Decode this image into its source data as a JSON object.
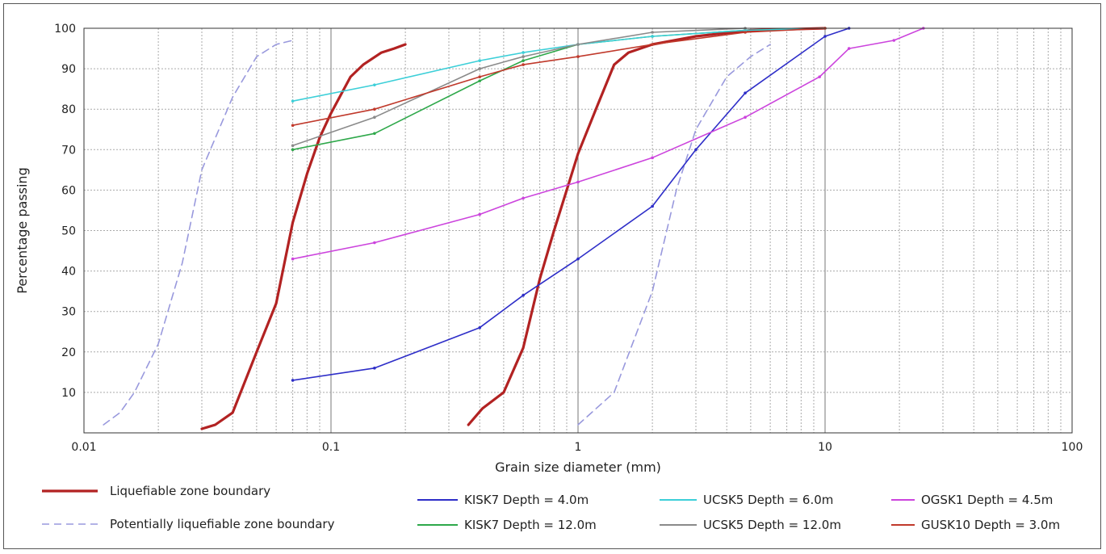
{
  "chart_data": {
    "type": "line",
    "xscale": "log",
    "xlim": [
      0.01,
      100
    ],
    "ylim": [
      0,
      100
    ],
    "xlabel": "Grain size diameter (mm)",
    "ylabel": "Percentage passing",
    "xticks": [
      "0.01",
      "0.1",
      "1",
      "10",
      "100"
    ],
    "yticks": [
      "10",
      "20",
      "30",
      "40",
      "50",
      "60",
      "70",
      "80",
      "90",
      "100"
    ],
    "grid": true,
    "legend_position": "bottom",
    "boundaries": [
      {
        "name": "Liquefiable zone boundary",
        "style": "solid-thick",
        "color": "#b22222",
        "segments": [
          [
            [
              0.03,
              1
            ],
            [
              0.034,
              2
            ],
            [
              0.04,
              5
            ],
            [
              0.05,
              20
            ],
            [
              0.06,
              32
            ],
            [
              0.07,
              52
            ],
            [
              0.08,
              64
            ],
            [
              0.09,
              73
            ],
            [
              0.1,
              79
            ],
            [
              0.12,
              88
            ],
            [
              0.135,
              91
            ],
            [
              0.16,
              94
            ],
            [
              0.18,
              95
            ],
            [
              0.2,
              96
            ]
          ],
          [
            [
              0.36,
              2
            ],
            [
              0.41,
              6
            ],
            [
              0.5,
              10
            ],
            [
              0.6,
              21
            ],
            [
              0.7,
              38
            ],
            [
              0.8,
              50
            ],
            [
              0.9,
              60
            ],
            [
              1.0,
              69
            ],
            [
              1.2,
              81
            ],
            [
              1.4,
              91
            ],
            [
              1.6,
              94
            ],
            [
              2.0,
              96
            ],
            [
              3.0,
              98
            ],
            [
              5.0,
              99.5
            ],
            [
              10.0,
              100
            ]
          ]
        ]
      },
      {
        "name": "Potentially liquefiable zone boundary",
        "style": "dashed",
        "color": "#9999dd",
        "segments": [
          [
            [
              0.012,
              2
            ],
            [
              0.014,
              5
            ],
            [
              0.016,
              10
            ],
            [
              0.02,
              22
            ],
            [
              0.025,
              42
            ],
            [
              0.03,
              65
            ],
            [
              0.04,
              83
            ],
            [
              0.05,
              93
            ],
            [
              0.06,
              96
            ],
            [
              0.07,
              97
            ]
          ],
          [
            [
              1.0,
              2
            ],
            [
              1.4,
              10
            ],
            [
              2.0,
              35
            ],
            [
              2.5,
              60
            ],
            [
              3.0,
              75
            ],
            [
              4.0,
              88
            ],
            [
              5.0,
              93
            ],
            [
              6.0,
              96
            ]
          ]
        ]
      }
    ],
    "series": [
      {
        "name": "KISK7 Depth = 4.0m",
        "color": "#2e2ec8",
        "points": [
          [
            0.07,
            13
          ],
          [
            0.15,
            16
          ],
          [
            0.4,
            26
          ],
          [
            0.6,
            34
          ],
          [
            1.0,
            43
          ],
          [
            2.0,
            56
          ],
          [
            3.0,
            70
          ],
          [
            4.75,
            84
          ],
          [
            10.0,
            98
          ],
          [
            12.5,
            100
          ]
        ]
      },
      {
        "name": "KISK7 Depth = 12.0m",
        "color": "#2ea84a",
        "points": [
          [
            0.07,
            70
          ],
          [
            0.15,
            74
          ],
          [
            0.4,
            87
          ],
          [
            0.6,
            92
          ],
          [
            1.0,
            96
          ],
          [
            2.0,
            98
          ],
          [
            4.75,
            99.5
          ],
          [
            10.0,
            100
          ]
        ]
      },
      {
        "name": "UCSK5 Depth = 6.0m",
        "color": "#3ccfd8",
        "points": [
          [
            0.07,
            82
          ],
          [
            0.15,
            86
          ],
          [
            0.4,
            92
          ],
          [
            0.6,
            94
          ],
          [
            1.0,
            96
          ],
          [
            2.0,
            98
          ],
          [
            4.75,
            99.5
          ],
          [
            10.0,
            100
          ]
        ]
      },
      {
        "name": "UCSK5 Depth = 12.0m",
        "color": "#8a8a8a",
        "points": [
          [
            0.07,
            71
          ],
          [
            0.15,
            78
          ],
          [
            0.4,
            90
          ],
          [
            0.6,
            93
          ],
          [
            1.0,
            96
          ],
          [
            2.0,
            99
          ],
          [
            4.75,
            100
          ]
        ]
      },
      {
        "name": "OGSK1 Depth = 4.5m",
        "color": "#cc44dd",
        "points": [
          [
            0.07,
            43
          ],
          [
            0.15,
            47
          ],
          [
            0.4,
            54
          ],
          [
            0.6,
            58
          ],
          [
            1.0,
            62
          ],
          [
            2.0,
            68
          ],
          [
            4.75,
            78
          ],
          [
            9.5,
            88
          ],
          [
            12.5,
            95
          ],
          [
            19.0,
            97
          ],
          [
            25.0,
            100
          ]
        ]
      },
      {
        "name": "GUSK10 Depth = 3.0m",
        "color": "#c0392b",
        "points": [
          [
            0.07,
            76
          ],
          [
            0.15,
            80
          ],
          [
            0.4,
            88
          ],
          [
            0.6,
            91
          ],
          [
            1.0,
            93
          ],
          [
            2.0,
            96
          ],
          [
            4.75,
            99
          ],
          [
            10.0,
            100
          ]
        ]
      }
    ]
  }
}
